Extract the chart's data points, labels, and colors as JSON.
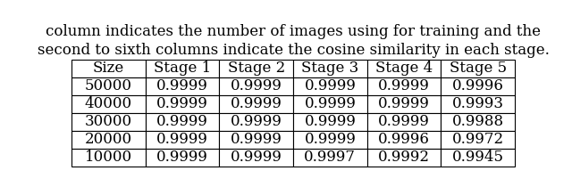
{
  "caption_lines": [
    "column indicates the number of images using for training and the",
    "second to sixth columns indicate the cosine similarity in each stage."
  ],
  "headers": [
    "Size",
    "Stage 1",
    "Stage 2",
    "Stage 3",
    "Stage 4",
    "Stage 5"
  ],
  "rows": [
    [
      "50000",
      "0.9999",
      "0.9999",
      "0.9999",
      "0.9999",
      "0.9996"
    ],
    [
      "40000",
      "0.9999",
      "0.9999",
      "0.9999",
      "0.9999",
      "0.9993"
    ],
    [
      "30000",
      "0.9999",
      "0.9999",
      "0.9999",
      "0.9999",
      "0.9988"
    ],
    [
      "20000",
      "0.9999",
      "0.9999",
      "0.9999",
      "0.9996",
      "0.9972"
    ],
    [
      "10000",
      "0.9999",
      "0.9999",
      "0.9997",
      "0.9992",
      "0.9945"
    ]
  ],
  "background_color": "#ffffff",
  "header_fontsize": 12,
  "cell_fontsize": 12,
  "caption_fontsize": 12
}
